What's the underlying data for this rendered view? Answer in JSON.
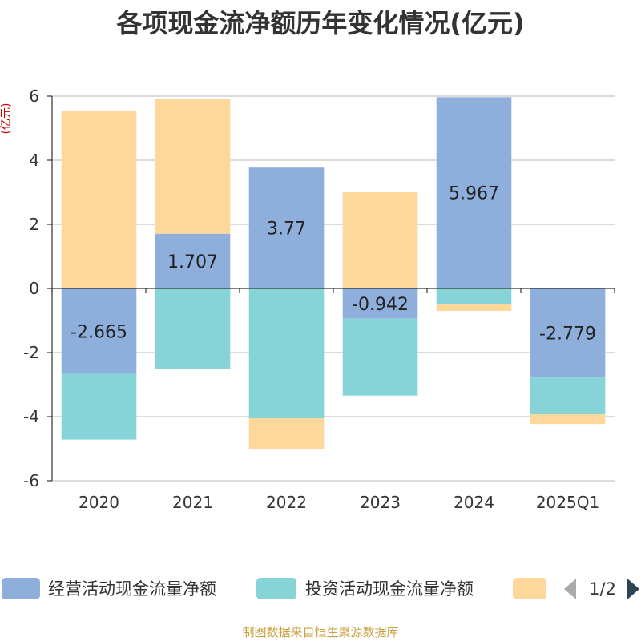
{
  "chart_data": {
    "type": "bar",
    "stacked": true,
    "title": "各项现金流净额历年变化情况(亿元)",
    "ylabel": "(亿元)",
    "ylim": [
      -6,
      6
    ],
    "yticks": [
      6,
      4,
      2,
      0,
      -2,
      -4,
      -6
    ],
    "categories": [
      "2020",
      "2021",
      "2022",
      "2023",
      "2024",
      "2025Q1"
    ],
    "series": [
      {
        "name": "经营活动现金流量净额",
        "color": "#8eaedb",
        "values": [
          -2.665,
          1.707,
          3.77,
          -0.942,
          5.967,
          -2.779
        ],
        "labels_shown": true
      },
      {
        "name": "投资活动现金流量净额",
        "color": "#86d4d7",
        "values": [
          -2.05,
          -2.5,
          -4.05,
          -2.4,
          -0.5,
          -1.15
        ],
        "labels_shown": false
      },
      {
        "name": "",
        "color": "#fdd89a",
        "values": [
          5.55,
          4.2,
          -0.95,
          3.0,
          -0.2,
          -0.3
        ],
        "labels_shown": false
      }
    ],
    "legend": {
      "position": "bottom",
      "page": "1/2"
    },
    "grid": true
  },
  "footer": {
    "source": "制图数据来自恒生聚源数据库"
  }
}
